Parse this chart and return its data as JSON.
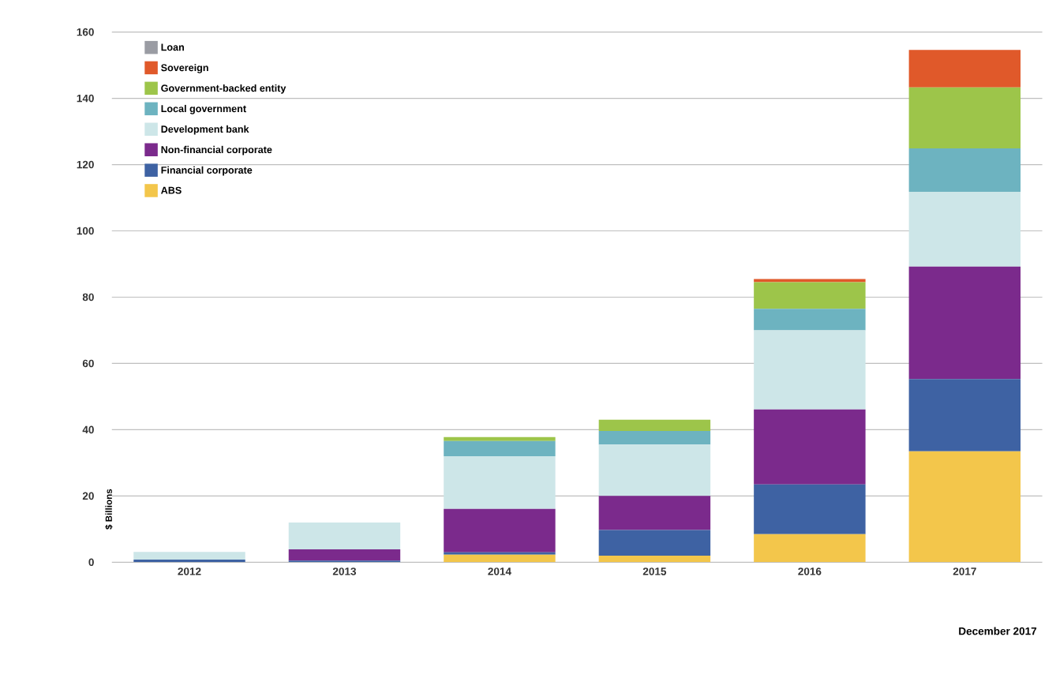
{
  "chart_data": {
    "type": "bar",
    "stacked": true,
    "ylabel": "$ Billions",
    "categories": [
      "2012",
      "2013",
      "2014",
      "2015",
      "2016",
      "2017"
    ],
    "series": [
      {
        "name": "ABS",
        "color": "#f3c64b",
        "values": [
          0,
          0,
          2.3,
          2,
          8.5,
          33.5
        ]
      },
      {
        "name": "Financial corporate",
        "color": "#3e62a3",
        "values": [
          0.8,
          0.5,
          0.7,
          7.7,
          15,
          21.8
        ]
      },
      {
        "name": "Non-financial corporate",
        "color": "#7b2a8c",
        "values": [
          0,
          3.4,
          13.1,
          10.3,
          22.6,
          33.9
        ]
      },
      {
        "name": "Development bank",
        "color": "#cde6e8",
        "values": [
          2.3,
          8.1,
          15.9,
          15.5,
          23.9,
          22.6
        ]
      },
      {
        "name": "Local government",
        "color": "#6db3c0",
        "values": [
          0,
          0,
          4.6,
          4.1,
          6.5,
          13.1
        ]
      },
      {
        "name": "Government-backed entity",
        "color": "#9dc54a",
        "values": [
          0,
          0,
          1.2,
          3.4,
          8,
          18.4
        ]
      },
      {
        "name": "Sovereign",
        "color": "#e0592a",
        "values": [
          0,
          0,
          0,
          0,
          1,
          11.3
        ]
      },
      {
        "name": "Loan",
        "color": "#9a9ca3",
        "values": [
          0,
          0,
          0,
          0,
          0,
          0
        ]
      }
    ],
    "ylim": [
      0,
      160
    ],
    "yticks": [
      0,
      20,
      40,
      60,
      80,
      100,
      120,
      140,
      160
    ],
    "grid": "y",
    "legend": "top left",
    "annotations": [
      "December 2017"
    ]
  }
}
